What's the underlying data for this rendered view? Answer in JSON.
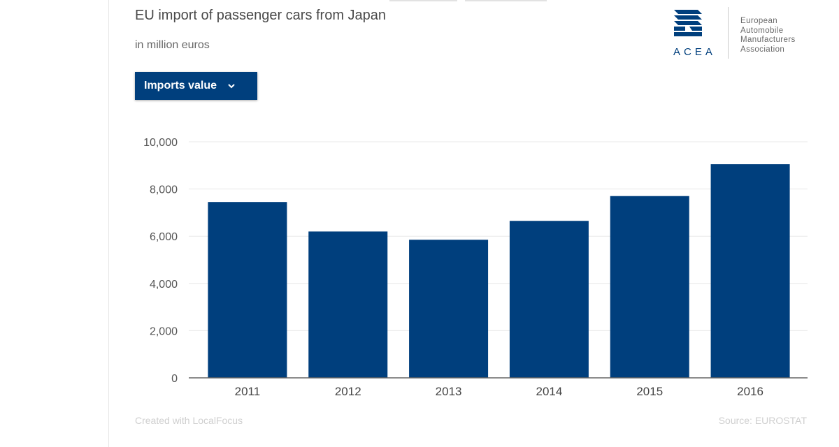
{
  "chart_data": {
    "type": "bar",
    "title": "EU import of passenger cars from Japan",
    "subtitle": "in million euros",
    "categories": [
      "2011",
      "2012",
      "2013",
      "2014",
      "2015",
      "2016"
    ],
    "values": [
      7450,
      6200,
      5850,
      6650,
      7700,
      9050
    ],
    "ylim": [
      0,
      10000
    ],
    "yticks": [
      0,
      2000,
      4000,
      6000,
      8000,
      10000
    ],
    "ytick_labels": [
      "0",
      "2,000",
      "4,000",
      "6,000",
      "8,000",
      "10,000"
    ],
    "grid": true,
    "bar_color": "#003f7d"
  },
  "controls": {
    "dropdown_label": "Imports value"
  },
  "logo": {
    "abbr": "ACEA",
    "name_lines": [
      "European",
      "Automobile",
      "Manufacturers",
      "Association"
    ]
  },
  "footer": {
    "credit": "Created with LocalFocus",
    "source": "Source:  EUROSTAT"
  }
}
